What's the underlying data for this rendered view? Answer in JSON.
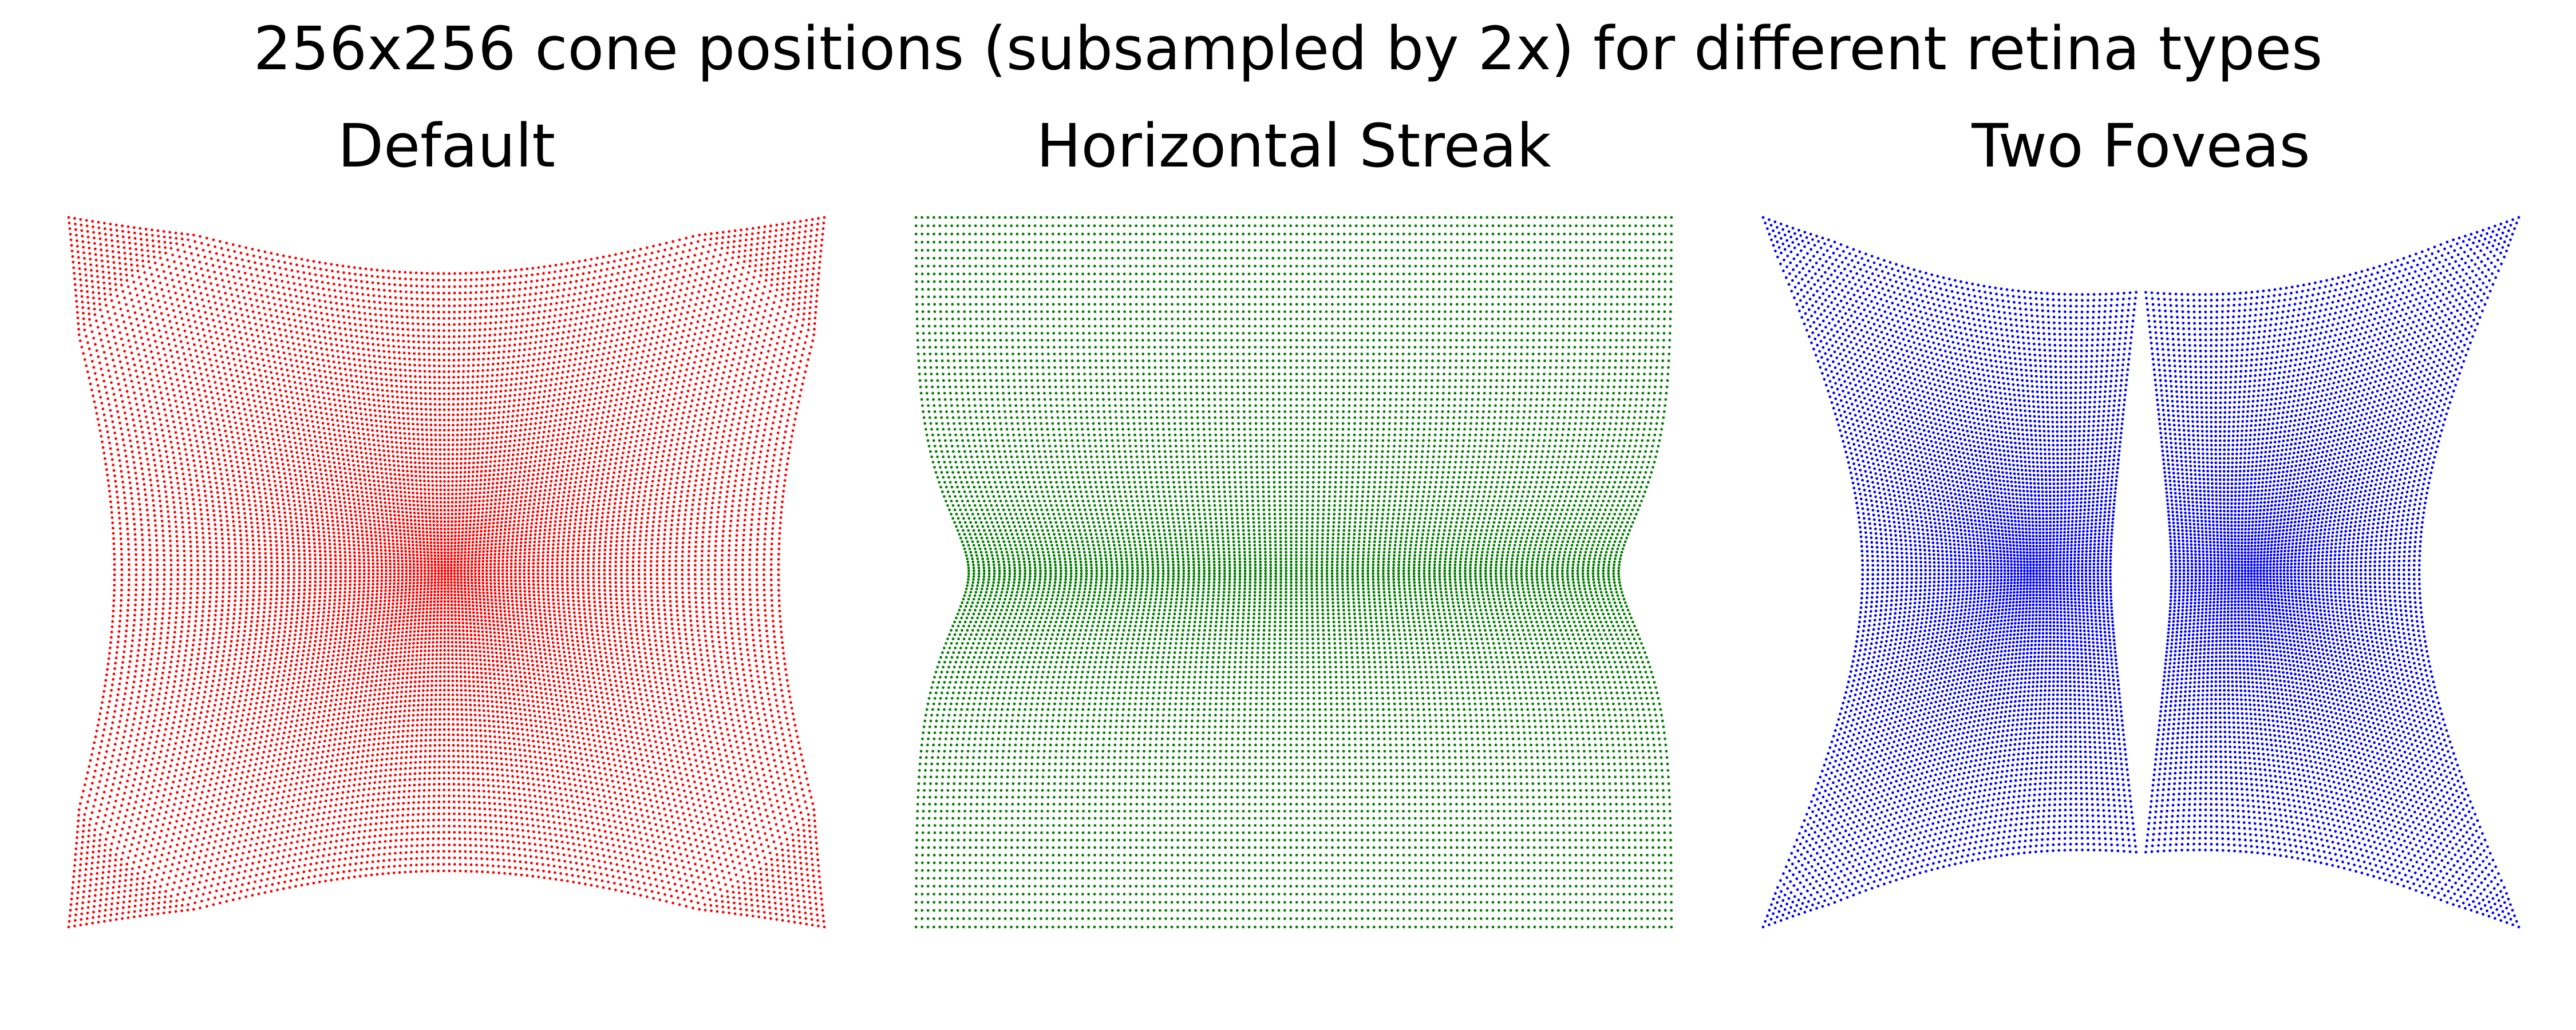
{
  "figure": {
    "title": "256x256 cone positions (subsampled by 2x) for different retina types"
  },
  "chart_data": [
    {
      "type": "scatter",
      "title": "Default",
      "color": "#ff0000",
      "grid_size": 128,
      "xlim": [
        -1,
        1
      ],
      "ylim": [
        -1,
        1
      ],
      "axes_visible": false,
      "distortion": "single central fovea; lattice compressed toward center, edges bowed inward"
    },
    {
      "type": "scatter",
      "title": "Horizontal Streak",
      "color": "#008000",
      "grid_size": 128,
      "xlim": [
        -1,
        1
      ],
      "ylim": [
        -1,
        1
      ],
      "axes_visible": false,
      "distortion": "horizontal streak; rows compressed toward the horizontal midline, sides pinched at center"
    },
    {
      "type": "scatter",
      "title": "Two Foveas",
      "color": "#0000ff",
      "grid_size": 128,
      "xlim": [
        -1,
        1
      ],
      "ylim": [
        -1,
        1
      ],
      "axes_visible": false,
      "distortion": "two foveas left and right of center; strong compression toward two centers, edges pulled inward"
    }
  ]
}
